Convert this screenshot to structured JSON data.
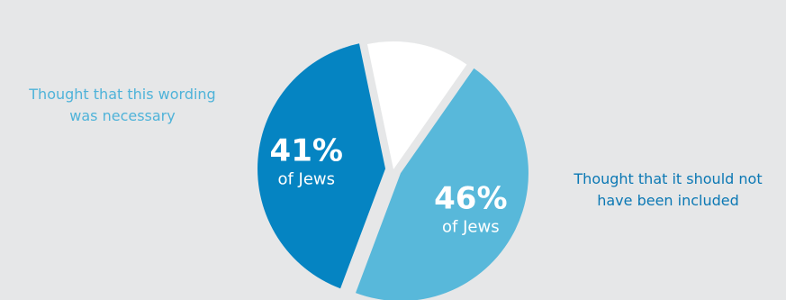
{
  "chart_data": {
    "type": "pie",
    "slices": [
      {
        "value": 46,
        "percent_text": "46%",
        "sub_label": "of Jews",
        "callout": "Thought that this wording was necessary",
        "color": "#58b8da",
        "exploded": true
      },
      {
        "value": 41,
        "percent_text": "41%",
        "sub_label": "of Jews",
        "callout": "Thought that it should not have been included",
        "color": "#0584c2",
        "exploded": true
      },
      {
        "value": 13,
        "color": "#ffffff",
        "exploded": false
      }
    ],
    "callout_colors": {
      "left": "#4fb3d9",
      "right": "#0b78b4"
    }
  },
  "callouts": {
    "left": [
      "Thought that this wording",
      "was necessary"
    ],
    "right": [
      "Thought that it should not",
      "have been included"
    ]
  }
}
